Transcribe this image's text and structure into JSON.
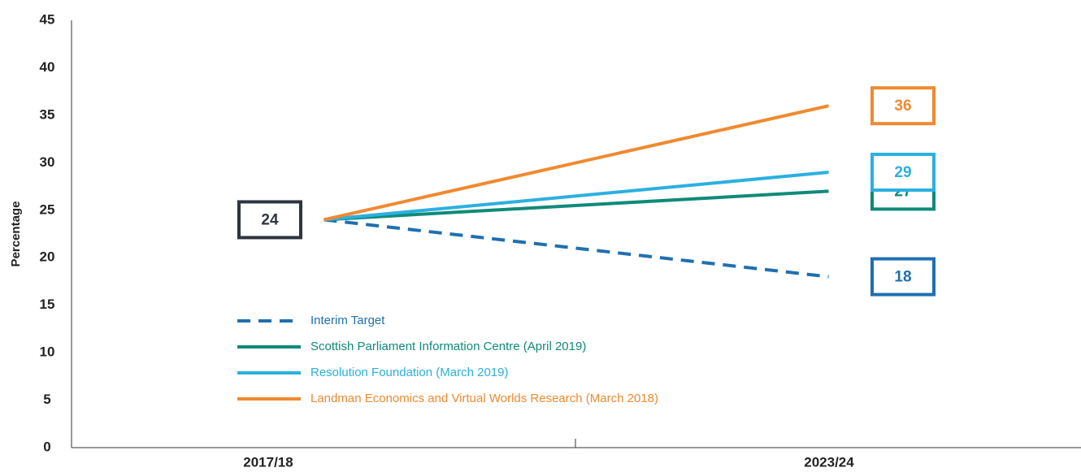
{
  "chart_data": {
    "type": "line",
    "categories": [
      "2017/18",
      "2023/24"
    ],
    "y_label": "Percentage",
    "ylim": [
      0,
      45
    ],
    "yticks": [
      0,
      5,
      10,
      15,
      20,
      25,
      30,
      35,
      40,
      45
    ],
    "grid": false,
    "start_box_color": "#2d3540",
    "series": [
      {
        "name": "Interim Target",
        "color": "#1f6fb0",
        "dashed": true,
        "values": [
          24,
          18
        ]
      },
      {
        "name": "Scottish Parliament Information Centre (April 2019)",
        "color": "#0f8a7a",
        "dashed": false,
        "values": [
          24,
          27
        ]
      },
      {
        "name": "Resolution Foundation (March 2019)",
        "color": "#2bb0e0",
        "dashed": false,
        "values": [
          24,
          29
        ]
      },
      {
        "name": "Landman Economics and Virtual Worlds Research (March 2018)",
        "color": "#f08a30",
        "dashed": false,
        "values": [
          24,
          36
        ]
      }
    ]
  }
}
